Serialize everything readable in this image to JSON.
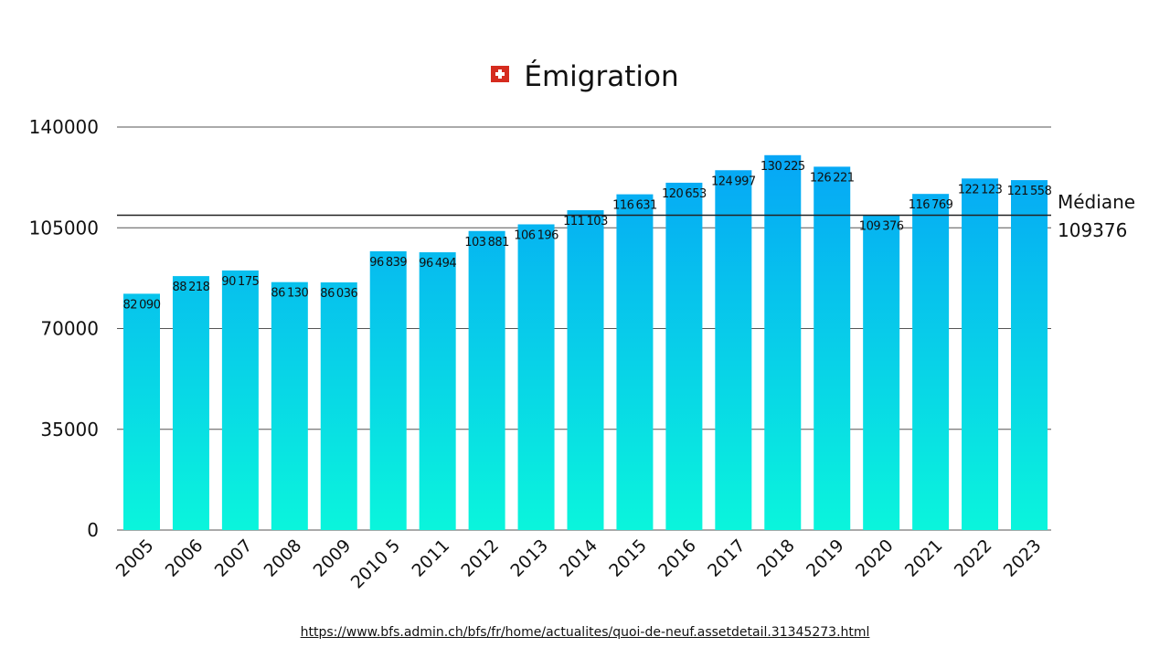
{
  "chart_data": {
    "type": "bar",
    "title": "Émigration",
    "categories": [
      "2005",
      "2006",
      "2007",
      "2008",
      "2009",
      "2010 5",
      "2011",
      "2012",
      "2013",
      "2014",
      "2015",
      "2016",
      "2017",
      "2018",
      "2019",
      "2020",
      "2021",
      "2022",
      "2023"
    ],
    "values": [
      82090,
      88218,
      90175,
      86130,
      86036,
      96839,
      96494,
      103881,
      106196,
      111103,
      116631,
      120653,
      124997,
      130225,
      126221,
      109376,
      116769,
      122123,
      121558
    ],
    "ylim": [
      0,
      140000
    ],
    "yticks": [
      0,
      35000,
      70000,
      105000,
      140000
    ],
    "grid": true,
    "median": {
      "label": "Médiane",
      "value": 109376,
      "value_label": "109376"
    },
    "colors": {
      "bar_top": "#05a0f8",
      "bar_bottom": "#0af5dc",
      "grid": "#555555",
      "median_line": "#222222"
    }
  },
  "source": "https://www.bfs.admin.ch/bfs/fr/home/actualites/quoi-de-neuf.assetdetail.31345273.html",
  "flag_icon": "swiss-flag-icon"
}
